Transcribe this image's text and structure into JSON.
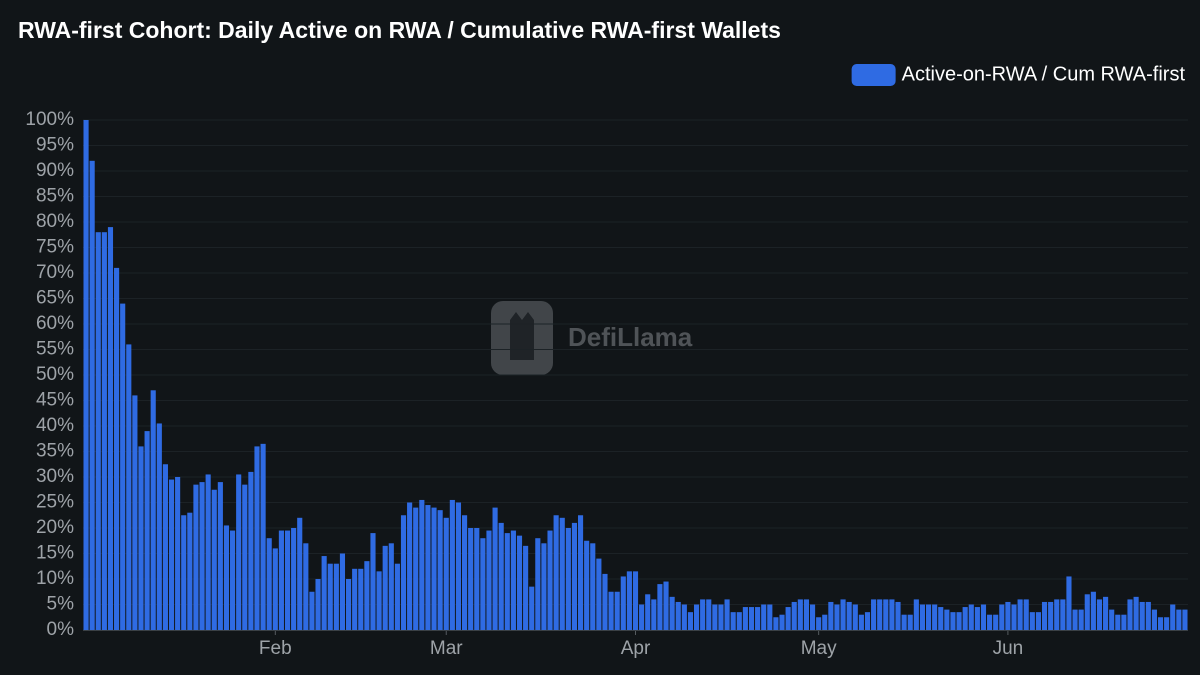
{
  "chart_data": {
    "type": "bar",
    "title": "RWA-first Cohort: Daily Active on RWA / Cumulative RWA-first Wallets",
    "watermark": "DefiLlama",
    "legend": "top-right",
    "grid": true,
    "ylim": [
      0,
      100
    ],
    "yticks": [
      {
        "value": 0,
        "label": "0%"
      },
      {
        "value": 5,
        "label": "5%"
      },
      {
        "value": 10,
        "label": "10%"
      },
      {
        "value": 15,
        "label": "15%"
      },
      {
        "value": 20,
        "label": "20%"
      },
      {
        "value": 25,
        "label": "25%"
      },
      {
        "value": 30,
        "label": "30%"
      },
      {
        "value": 35,
        "label": "35%"
      },
      {
        "value": 40,
        "label": "40%"
      },
      {
        "value": 45,
        "label": "45%"
      },
      {
        "value": 50,
        "label": "50%"
      },
      {
        "value": 55,
        "label": "55%"
      },
      {
        "value": 60,
        "label": "60%"
      },
      {
        "value": 65,
        "label": "65%"
      },
      {
        "value": 70,
        "label": "70%"
      },
      {
        "value": 75,
        "label": "75%"
      },
      {
        "value": 80,
        "label": "80%"
      },
      {
        "value": 85,
        "label": "85%"
      },
      {
        "value": 90,
        "label": "90%"
      },
      {
        "value": 95,
        "label": "95%"
      },
      {
        "value": 100,
        "label": "100%"
      }
    ],
    "categories": [
      null,
      null,
      null,
      null,
      null,
      null,
      null,
      null,
      null,
      null,
      null,
      null,
      null,
      null,
      null,
      null,
      null,
      null,
      null,
      null,
      null,
      null,
      null,
      null,
      null,
      null,
      null,
      null,
      null,
      null,
      null,
      "Feb",
      null,
      null,
      null,
      null,
      null,
      null,
      null,
      null,
      null,
      null,
      null,
      null,
      null,
      null,
      null,
      null,
      null,
      null,
      null,
      null,
      null,
      null,
      null,
      null,
      null,
      null,
      null,
      "Mar",
      null,
      null,
      null,
      null,
      null,
      null,
      null,
      null,
      null,
      null,
      null,
      null,
      null,
      null,
      null,
      null,
      null,
      null,
      null,
      null,
      null,
      null,
      null,
      null,
      null,
      null,
      null,
      null,
      null,
      null,
      "Apr",
      null,
      null,
      null,
      null,
      null,
      null,
      null,
      null,
      null,
      null,
      null,
      null,
      null,
      null,
      null,
      null,
      null,
      null,
      null,
      null,
      null,
      null,
      null,
      null,
      null,
      null,
      null,
      null,
      null,
      "May",
      null,
      null,
      null,
      null,
      null,
      null,
      null,
      null,
      null,
      null,
      null,
      null,
      null,
      null,
      null,
      null,
      null,
      null,
      null,
      null,
      null,
      null,
      null,
      null,
      null,
      null,
      null,
      null,
      null,
      null,
      "Jun",
      null,
      null,
      null,
      null,
      null,
      null,
      null,
      null,
      null,
      null,
      null,
      null,
      null,
      null,
      null,
      null,
      null,
      null,
      null,
      null,
      null,
      null,
      null,
      null,
      null,
      null,
      null,
      null,
      null
    ],
    "series": [
      {
        "name": "Active-on-RWA / Cum RWA-first",
        "color": "#2f6be3",
        "values": [
          100,
          92,
          78,
          78,
          79,
          71,
          64,
          56,
          46,
          36,
          39,
          47,
          40.5,
          32.5,
          29.5,
          30,
          22.5,
          23,
          28.5,
          29,
          30.5,
          27.5,
          29,
          20.5,
          19.5,
          30.5,
          28.5,
          31,
          36,
          36.5,
          18,
          16,
          19.5,
          19.5,
          20,
          22,
          17,
          7.5,
          10,
          14.5,
          13,
          13,
          15,
          10,
          12,
          12,
          13.5,
          19,
          11.5,
          16.5,
          17,
          13,
          22.5,
          25,
          24,
          25.5,
          24.5,
          24,
          23.5,
          22,
          25.5,
          25,
          22.5,
          20,
          20,
          18,
          19.5,
          24,
          21,
          19,
          19.5,
          18.5,
          16.5,
          8.5,
          18,
          17,
          19.5,
          22.5,
          22,
          20,
          21,
          22.5,
          17.5,
          17,
          14,
          11,
          7.5,
          7.5,
          10.5,
          11.5,
          11.5,
          5,
          7,
          6,
          9,
          9.5,
          6.5,
          5.5,
          5,
          3.5,
          5,
          6,
          6,
          5,
          5,
          6,
          3.5,
          3.5,
          4.5,
          4.5,
          4.5,
          5,
          5,
          2.5,
          3,
          4.5,
          5.5,
          6,
          6,
          5,
          2.5,
          3,
          5.5,
          5,
          6,
          5.5,
          5,
          3,
          3.5,
          6,
          6,
          6,
          6,
          5.5,
          3,
          3,
          6,
          5,
          5,
          5,
          4.5,
          4,
          3.5,
          3.5,
          4.5,
          5,
          4.5,
          5,
          3,
          3,
          5,
          5.5,
          5,
          6,
          6,
          3.5,
          3.5,
          5.5,
          5.5,
          6,
          6,
          10.5,
          4,
          4,
          7,
          7.5,
          6,
          6.5,
          4,
          3,
          3,
          6,
          6.5,
          5.5,
          5.5,
          4,
          2.5,
          2.5,
          5,
          4,
          4
        ]
      }
    ]
  }
}
